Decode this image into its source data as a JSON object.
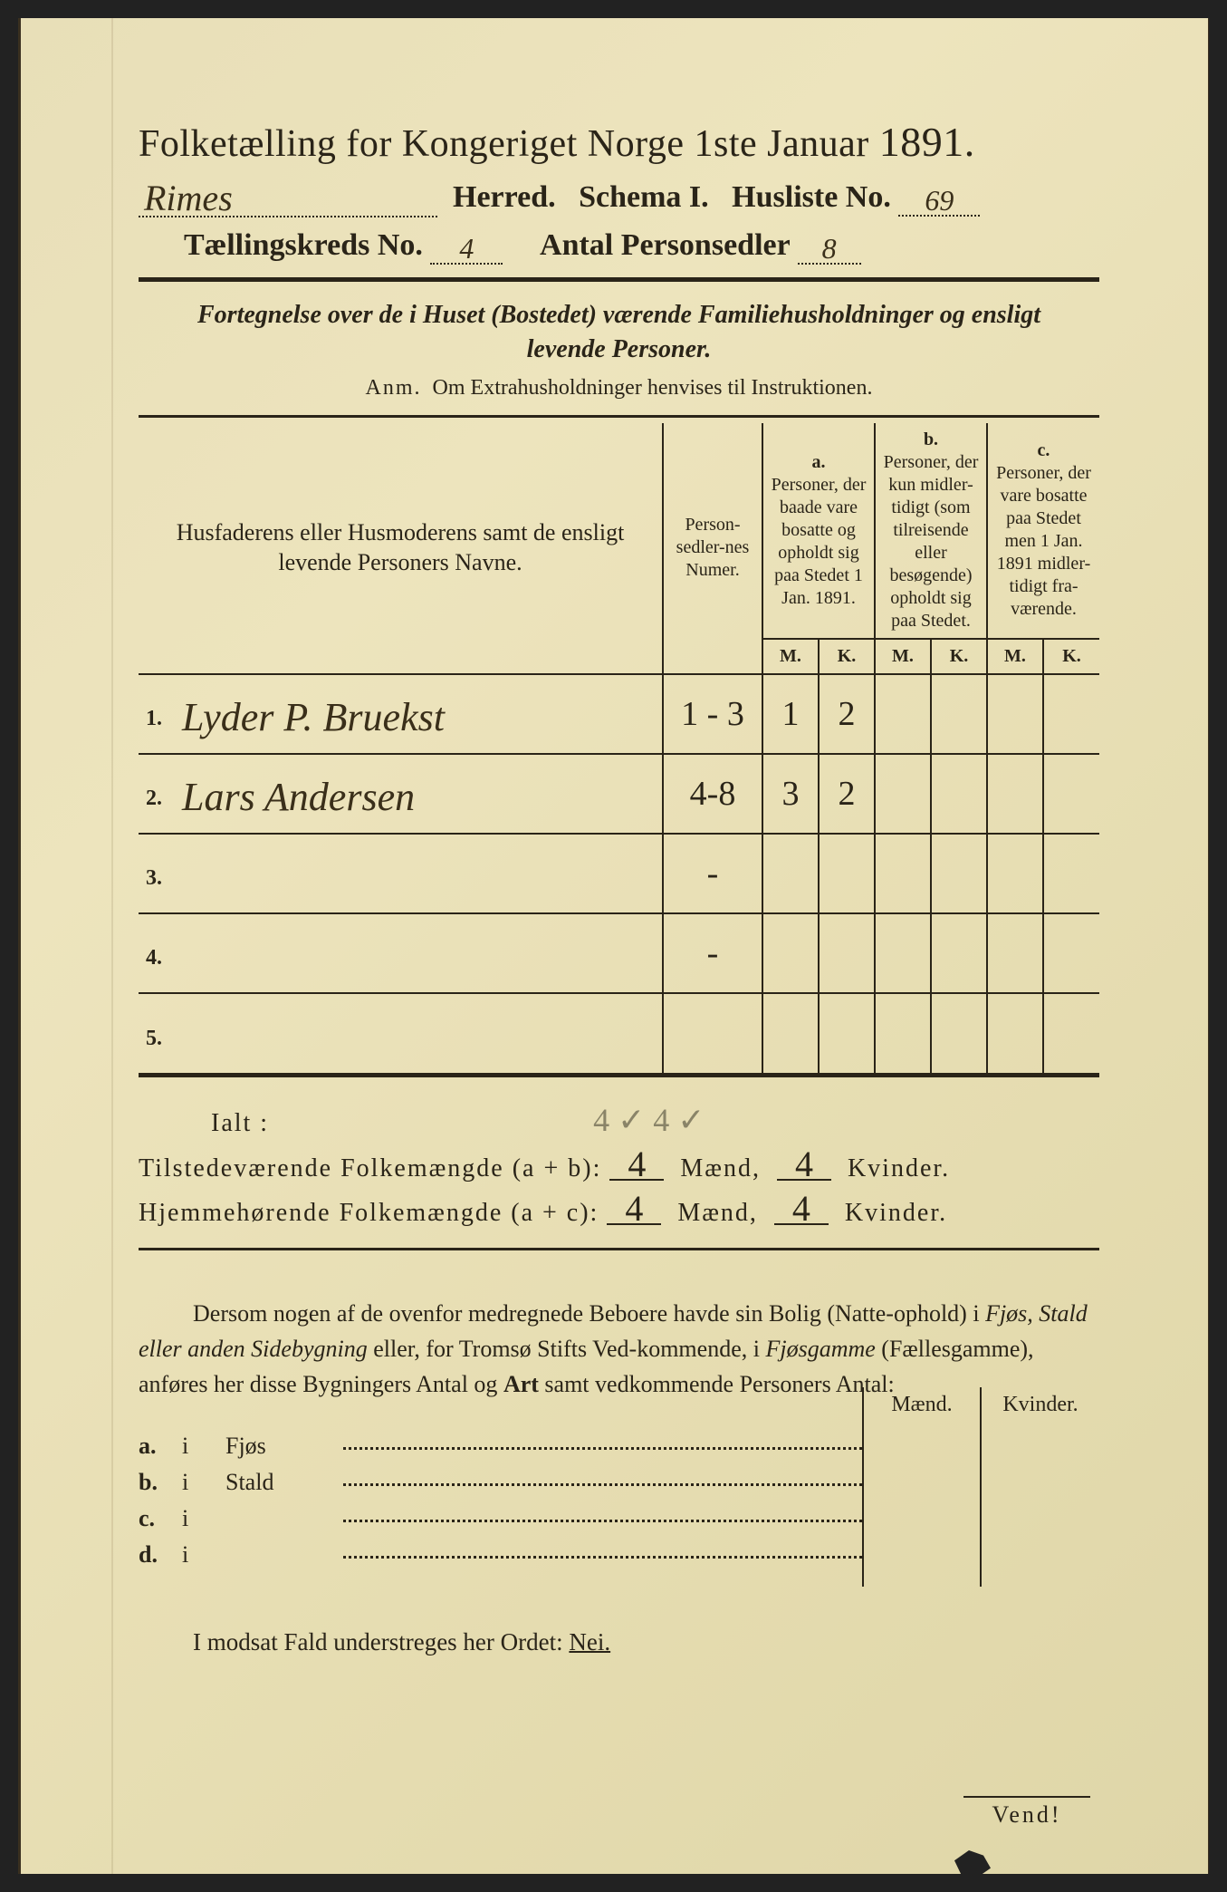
{
  "document": {
    "title_prefix": "Folketælling for Kongeriget Norge 1ste Januar",
    "year": "1891.",
    "herred_handwritten": "Rimes",
    "herred_label": "Herred.",
    "schema_label": "Schema I.",
    "husliste_label": "Husliste No.",
    "husliste_no": "69",
    "kreds_label": "Tællingskreds No.",
    "kreds_no": "4",
    "antal_label": "Antal Personsedler",
    "antal_no": "8"
  },
  "subtitle": {
    "line1_a": "Fortegnelse over de i Huset (Bostedet) værende Familiehusholdninger og ensligt",
    "line2": "levende Personer.",
    "anm_label": "Anm.",
    "anm_text": "Om Extrahusholdninger henvises til Instruktionen."
  },
  "table": {
    "col_names": "Husfaderens eller Husmoderens samt de ensligt levende Personers Navne.",
    "col_nums": "Person-sedler-nes Numer.",
    "col_a_label": "a.",
    "col_a_text": "Personer, der baade vare bosatte og opholdt sig paa Stedet 1 Jan. 1891.",
    "col_b_label": "b.",
    "col_b_text": "Personer, der kun midler-tidigt (som tilreisende eller besøgende) opholdt sig paa Stedet.",
    "col_c_label": "c.",
    "col_c_text": "Personer, der vare bosatte paa Stedet men 1 Jan. 1891 midler-tidigt fra-værende.",
    "m": "M.",
    "k": "K.",
    "rows": [
      {
        "n": "1.",
        "name": "Lyder P. Bruekst",
        "nums": "1 - 3",
        "a_m": "1",
        "a_k": "2",
        "b_m": "",
        "b_k": "",
        "c_m": "",
        "c_k": ""
      },
      {
        "n": "2.",
        "name": "Lars Andersen",
        "nums": "4-8",
        "a_m": "3",
        "a_k": "2",
        "b_m": "",
        "b_k": "",
        "c_m": "",
        "c_k": ""
      },
      {
        "n": "3.",
        "name": "",
        "nums": "-",
        "a_m": "",
        "a_k": "",
        "b_m": "",
        "b_k": "",
        "c_m": "",
        "c_k": ""
      },
      {
        "n": "4.",
        "name": "",
        "nums": "-",
        "a_m": "",
        "a_k": "",
        "b_m": "",
        "b_k": "",
        "c_m": "",
        "c_k": ""
      },
      {
        "n": "5.",
        "name": "",
        "nums": "",
        "a_m": "",
        "a_k": "",
        "b_m": "",
        "b_k": "",
        "c_m": "",
        "c_k": ""
      }
    ]
  },
  "totals": {
    "ialt_label": "Ialt :",
    "pencil_note": "4 ✓   4 ✓",
    "present_label": "Tilstedeværende Folkemængde (a + b):",
    "home_label": "Hjemmehørende Folkemængde (a + c):",
    "maend": "Mænd,",
    "kvinder": "Kvinder.",
    "present_m": "4",
    "present_k": "4",
    "home_m": "4",
    "home_k": "4"
  },
  "para": {
    "text1": "Dersom nogen af de ovenfor medregnede Beboere havde sin Bolig (Natte-ophold) i ",
    "i1": "Fjøs, Stald eller anden Sidebygning",
    "text2": " eller, for Tromsø Stifts Ved-kommende, i ",
    "i2": "Fjøsgamme",
    "text3": " (Fællesgamme), anføres her disse Bygningers Antal og ",
    "b1": "Art",
    "text4": " samt vedkommende Personers Antal:"
  },
  "sidebyg": {
    "maend": "Mænd.",
    "kvinder": "Kvinder.",
    "rows": [
      {
        "l": "a.",
        "i": "i",
        "t": "Fjøs"
      },
      {
        "l": "b.",
        "i": "i",
        "t": "Stald"
      },
      {
        "l": "c.",
        "i": "i",
        "t": ""
      },
      {
        "l": "d.",
        "i": "i",
        "t": ""
      }
    ]
  },
  "footer": {
    "nei_text": "I modsat Fald understreges her Ordet: ",
    "nei": "Nei.",
    "vend": "Vend!"
  },
  "colors": {
    "paper": "#e8dfb8",
    "ink": "#2a2418",
    "pencil": "#8a8468"
  }
}
